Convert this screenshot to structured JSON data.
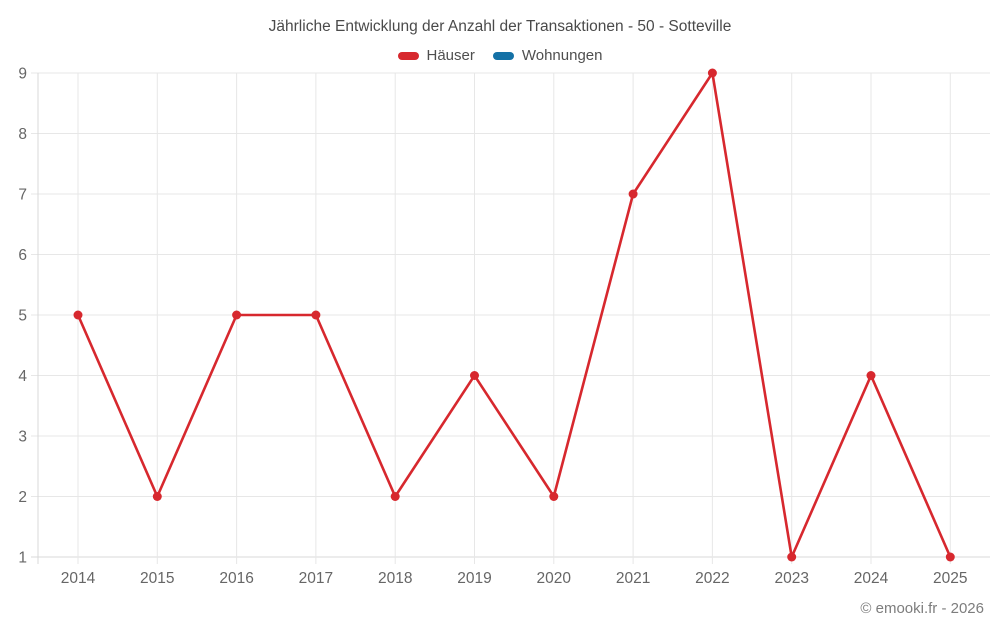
{
  "page": {
    "title": "Jährliche Entwicklung der Anzahl der Transaktionen - 50 - Sotteville",
    "copyright": "© emooki.fr - 2026"
  },
  "colors": {
    "grid": "#e7e7e7",
    "axis_line": "#d9d9d9",
    "axis_text": "#666666",
    "title_text": "#4a4a4a",
    "legend_text": "#4f4f4f",
    "copyright_text": "#7d7d7d",
    "background": "#ffffff"
  },
  "chart_data": {
    "type": "line",
    "title": "Jährliche Entwicklung der Anzahl der Transaktionen - 50 - Sotteville",
    "categories": [
      "2014",
      "2015",
      "2016",
      "2017",
      "2018",
      "2019",
      "2020",
      "2021",
      "2022",
      "2023",
      "2024",
      "2025"
    ],
    "series": [
      {
        "name": "Häuser",
        "color": "#d7282e",
        "values": [
          5,
          2,
          5,
          5,
          2,
          4,
          2,
          7,
          9,
          1,
          4,
          1
        ]
      },
      {
        "name": "Wohnungen",
        "color": "#1471a6",
        "values": []
      }
    ],
    "xlabel": "",
    "ylabel": "",
    "ylim": [
      1,
      9
    ],
    "yticks": [
      1,
      2,
      3,
      4,
      5,
      6,
      7,
      8,
      9
    ],
    "grid": true,
    "legend_position": "top",
    "marker": "circle",
    "marker_radius": 4.5,
    "line_width": 2.6
  }
}
